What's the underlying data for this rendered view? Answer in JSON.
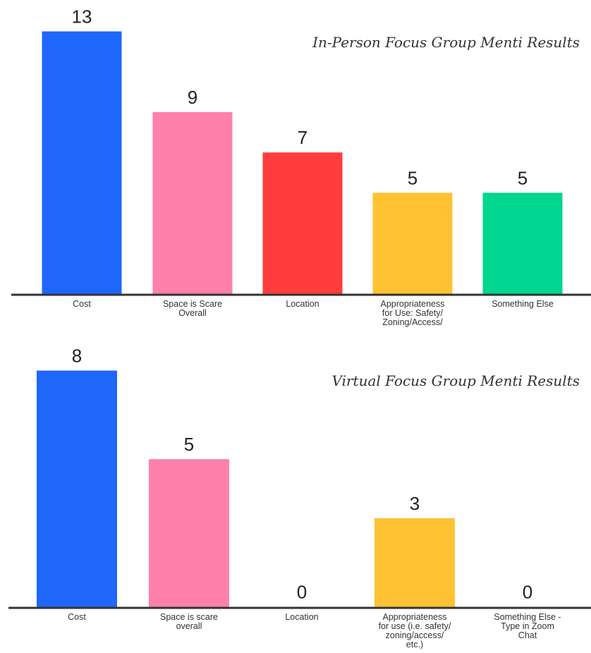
{
  "chart_data": [
    {
      "type": "bar",
      "title": "In-Person Focus Group  Menti Results",
      "categories": [
        "Cost",
        "Space is Scare Overall",
        "Location",
        "Appropriateness for Use: Safety/ Zoning/Access/",
        "Something Else"
      ],
      "category_lines": [
        [
          "Cost"
        ],
        [
          "Space is Scare",
          "Overall"
        ],
        [
          "Location"
        ],
        [
          "Appropriateness",
          "for Use: Safety/",
          "Zoning/Access/"
        ],
        [
          "Something Else"
        ]
      ],
      "values": [
        13,
        9,
        7,
        5,
        5
      ],
      "colors": [
        "#1f66fb",
        "#ff80aa",
        "#ff3d3d",
        "#ffc233",
        "#00d68f"
      ],
      "ylim": [
        0,
        13
      ]
    },
    {
      "type": "bar",
      "title": "Virtual Focus Group  Menti Results",
      "categories": [
        "Cost",
        "Space is scare overall",
        "Location",
        "Appropriateness for use (i.e. safety/ zoning/access/ etc.)",
        "Something Else - Type in Zoom Chat"
      ],
      "category_lines": [
        [
          "Cost"
        ],
        [
          "Space is scare",
          "overall"
        ],
        [
          "Location"
        ],
        [
          "Appropriateness",
          "for use (i.e. safety/",
          "zoning/access/",
          "etc.)"
        ],
        [
          "Something Else -",
          "Type in Zoom",
          "Chat"
        ]
      ],
      "values": [
        8,
        5,
        0,
        3,
        0
      ],
      "colors": [
        "#1f66fb",
        "#ff80aa",
        "#ff3d3d",
        "#ffc233",
        "#00d68f"
      ],
      "ylim": [
        0,
        8
      ]
    }
  ]
}
